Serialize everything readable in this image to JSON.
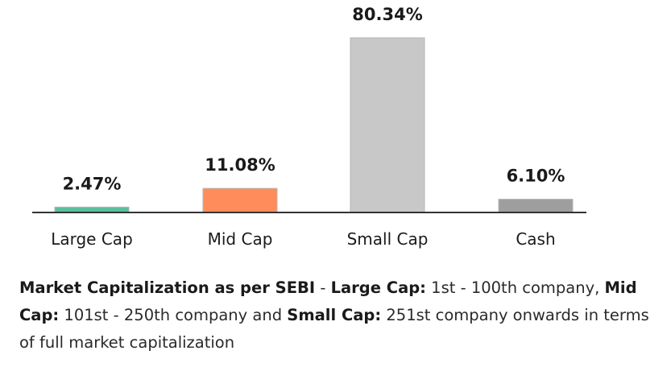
{
  "chart_data": {
    "type": "bar",
    "categories": [
      "Large Cap",
      "Mid Cap",
      "Small Cap",
      "Cash"
    ],
    "values": [
      2.47,
      11.08,
      80.34,
      6.1
    ],
    "data_labels": [
      "2.47%",
      "11.08%",
      "80.34%",
      "6.10%"
    ],
    "colors": [
      "#5bbf9b",
      "#ff8c5a",
      "#c8c8c8",
      "#9e9e9e"
    ],
    "title": "",
    "xlabel": "",
    "ylabel": "",
    "ylim": [
      0,
      80.34
    ],
    "grid": false,
    "legend": "none"
  },
  "footnote": {
    "part1_bold": "Market Capitalization as per SEBI",
    "part2": " - ",
    "part3_bold": "Large Cap:",
    "part4": " 1st - 100th company, ",
    "part5_bold": "Mid Cap:",
    "part6": " 101st - 250th company and ",
    "part7_bold": "Small Cap:",
    "part8": " 251st company onwards in terms of full market capitalization"
  }
}
